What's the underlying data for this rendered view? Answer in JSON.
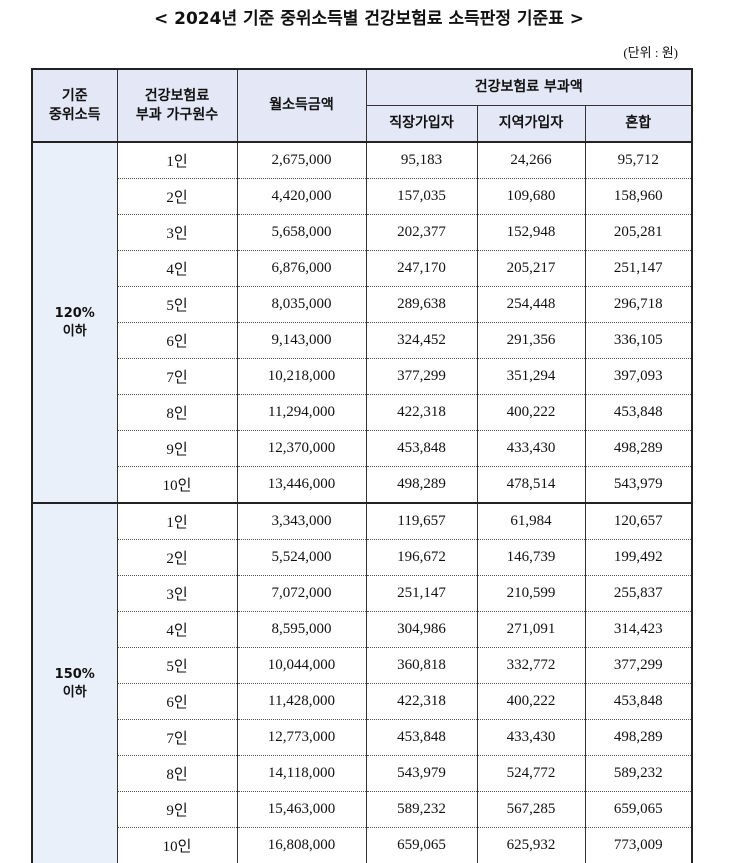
{
  "title": "< 2024년 기준 중위소득별 건강보험료 소득판정 기준표 >",
  "unit": "(단위 : 원)",
  "header": {
    "median": [
      "기준",
      "중위소득"
    ],
    "household": [
      "건강보험료",
      "부과 가구원수"
    ],
    "income": "월소득금액",
    "premium": "건강보험료 부과액",
    "employee": "직장가입자",
    "regional": "지역가입자",
    "mixed": "혼합"
  },
  "groups": [
    {
      "label": [
        "120%",
        "이하"
      ],
      "rows": [
        [
          "1인",
          "2,675,000",
          "95,183",
          "24,266",
          "95,712"
        ],
        [
          "2인",
          "4,420,000",
          "157,035",
          "109,680",
          "158,960"
        ],
        [
          "3인",
          "5,658,000",
          "202,377",
          "152,948",
          "205,281"
        ],
        [
          "4인",
          "6,876,000",
          "247,170",
          "205,217",
          "251,147"
        ],
        [
          "5인",
          "8,035,000",
          "289,638",
          "254,448",
          "296,718"
        ],
        [
          "6인",
          "9,143,000",
          "324,452",
          "291,356",
          "336,105"
        ],
        [
          "7인",
          "10,218,000",
          "377,299",
          "351,294",
          "397,093"
        ],
        [
          "8인",
          "11,294,000",
          "422,318",
          "400,222",
          "453,848"
        ],
        [
          "9인",
          "12,370,000",
          "453,848",
          "433,430",
          "498,289"
        ],
        [
          "10인",
          "13,446,000",
          "498,289",
          "478,514",
          "543,979"
        ]
      ]
    },
    {
      "label": [
        "150%",
        "이하"
      ],
      "rows": [
        [
          "1인",
          "3,343,000",
          "119,657",
          "61,984",
          "120,657"
        ],
        [
          "2인",
          "5,524,000",
          "196,672",
          "146,739",
          "199,492"
        ],
        [
          "3인",
          "7,072,000",
          "251,147",
          "210,599",
          "255,837"
        ],
        [
          "4인",
          "8,595,000",
          "304,986",
          "271,091",
          "314,423"
        ],
        [
          "5인",
          "10,044,000",
          "360,818",
          "332,772",
          "377,299"
        ],
        [
          "6인",
          "11,428,000",
          "422,318",
          "400,222",
          "453,848"
        ],
        [
          "7인",
          "12,773,000",
          "453,848",
          "433,430",
          "498,289"
        ],
        [
          "8인",
          "14,118,000",
          "543,979",
          "524,772",
          "589,232"
        ],
        [
          "9인",
          "15,463,000",
          "589,232",
          "567,285",
          "659,065"
        ],
        [
          "10인",
          "16,808,000",
          "659,065",
          "625,932",
          "773,009"
        ]
      ]
    }
  ]
}
